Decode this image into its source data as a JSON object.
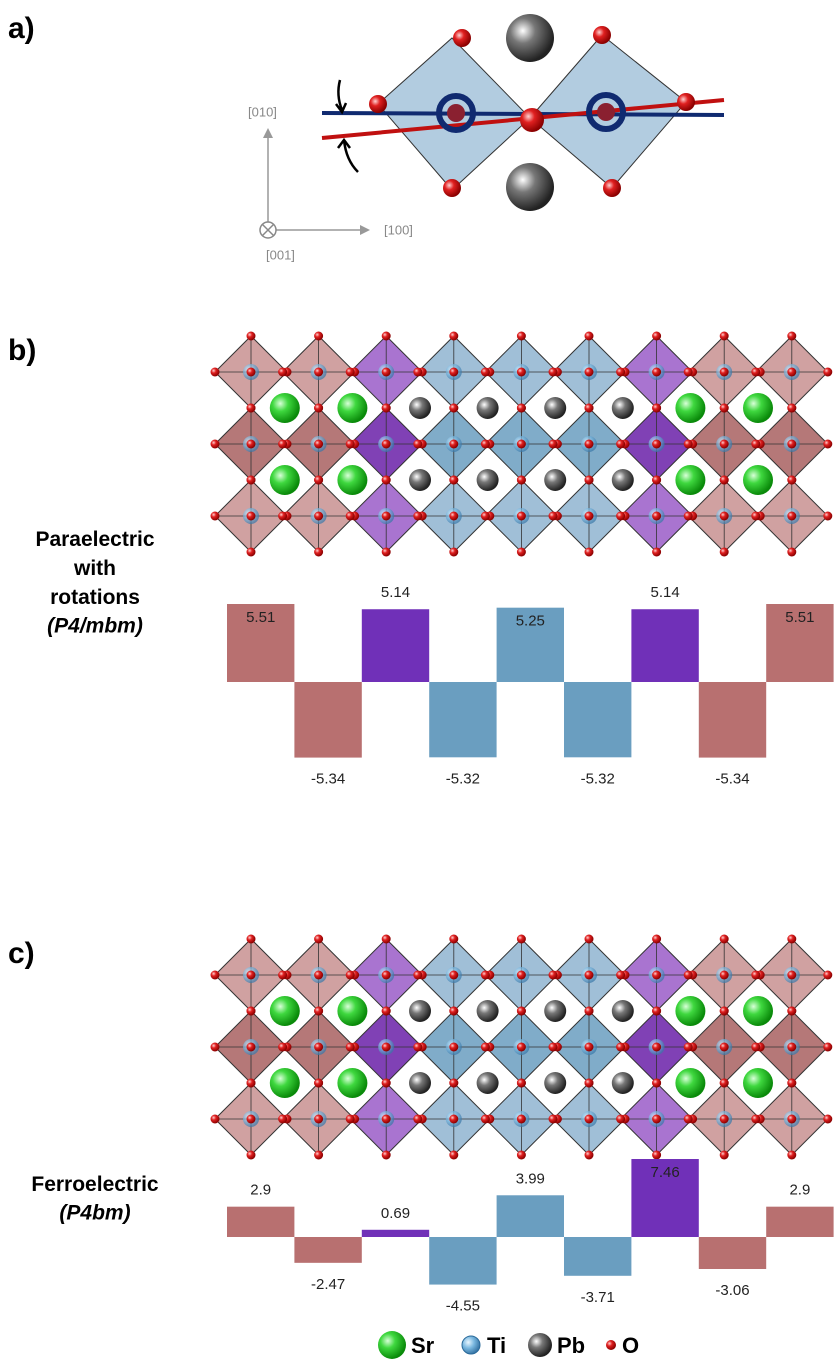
{
  "panel_a": {
    "label": "a)",
    "axis_y": "[010]",
    "axis_x": "[100]",
    "axis_z": "[001]"
  },
  "chart_data": [
    {
      "type": "bar",
      "panel_label": "b)",
      "title": "Paraelectric with rotations",
      "subtitle": "(P4/mbm)",
      "categories": [
        null,
        null,
        null,
        null,
        null,
        null,
        null,
        null,
        null
      ],
      "values": [
        5.51,
        -5.34,
        5.14,
        -5.32,
        5.25,
        -5.32,
        5.14,
        -5.34,
        5.51
      ],
      "colors": [
        "#b87070",
        "#b87070",
        "#7030b8",
        "#6a9ec0",
        "#6a9ec0",
        "#6a9ec0",
        "#7030b8",
        "#b87070",
        "#b87070"
      ]
    },
    {
      "type": "bar",
      "panel_label": "c)",
      "title": "Ferroelectric",
      "subtitle": "(P4bm)",
      "categories": [
        null,
        null,
        null,
        null,
        null,
        null,
        null,
        null,
        null
      ],
      "values": [
        2.9,
        -2.47,
        0.69,
        -4.55,
        3.99,
        -3.71,
        7.46,
        -3.06,
        2.9
      ],
      "colors": [
        "#b87070",
        "#b87070",
        "#7030b8",
        "#6a9ec0",
        "#6a9ec0",
        "#6a9ec0",
        "#7030b8",
        "#b87070",
        "#b87070"
      ]
    }
  ],
  "legend": [
    "Sr",
    "Ti",
    "Pb",
    "O"
  ]
}
